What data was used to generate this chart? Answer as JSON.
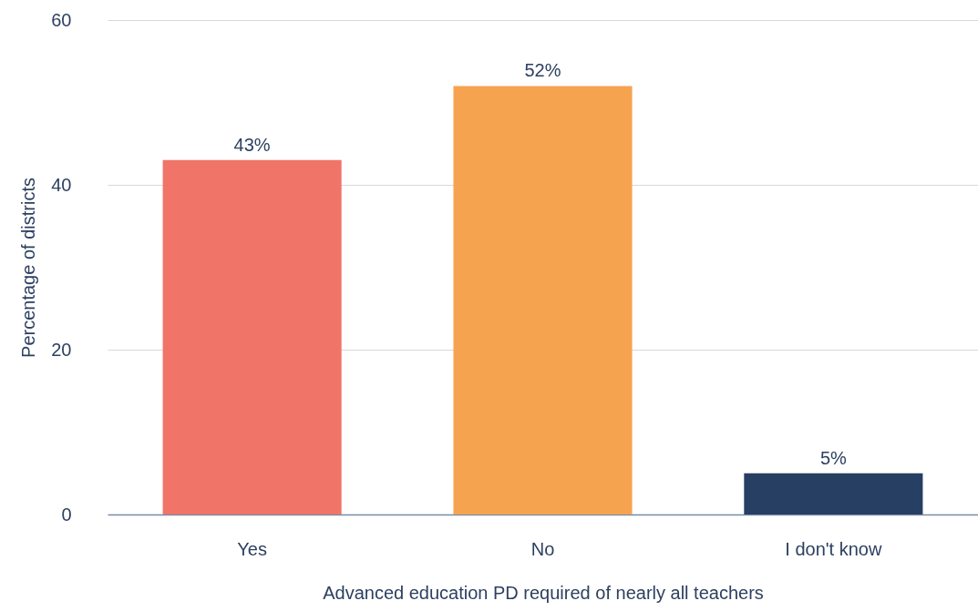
{
  "chart_data": {
    "type": "bar",
    "xlabel": "Advanced education PD required of nearly all teachers",
    "ylabel": "Percentage of districts",
    "categories": [
      "Yes",
      "No",
      "I don't know"
    ],
    "values": [
      43,
      52,
      5
    ],
    "colors": [
      "#f07468",
      "#f6a350",
      "#263f63"
    ],
    "value_labels": [
      "43%",
      "52%",
      "5%"
    ],
    "ylim": [
      0,
      60
    ],
    "yticks": [
      0,
      20,
      40,
      60
    ],
    "grid": "y"
  }
}
